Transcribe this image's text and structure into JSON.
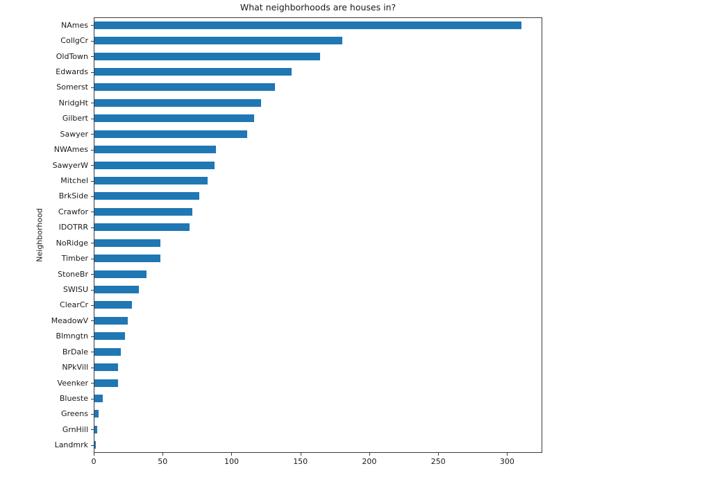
{
  "chart_data": {
    "type": "bar",
    "orientation": "horizontal",
    "title": "What neighborhoods are houses in?",
    "xlabel": "",
    "ylabel": "Neighborhood",
    "categories": [
      "NAmes",
      "CollgCr",
      "OldTown",
      "Edwards",
      "Somerst",
      "NridgHt",
      "Gilbert",
      "Sawyer",
      "NWAmes",
      "SawyerW",
      "Mitchel",
      "BrkSide",
      "Crawfor",
      "IDOTRR",
      "NoRidge",
      "Timber",
      "StoneBr",
      "SWISU",
      "ClearCr",
      "MeadowV",
      "Blmngtn",
      "BrDale",
      "NPkVill",
      "Veenker",
      "Blueste",
      "Greens",
      "GrnHill",
      "Landmrk"
    ],
    "values": [
      310,
      180,
      164,
      143,
      131,
      121,
      116,
      111,
      88,
      87,
      82,
      76,
      71,
      69,
      48,
      48,
      38,
      32,
      27,
      24,
      22,
      19,
      17,
      17,
      6,
      3,
      2,
      1
    ],
    "xticks": [
      0,
      50,
      100,
      150,
      200,
      250,
      300
    ],
    "xlim": [
      0,
      325.5
    ],
    "grid": false,
    "legend": "none",
    "bar_color": "#1f77b4",
    "text_color": "#1a1a1a"
  }
}
